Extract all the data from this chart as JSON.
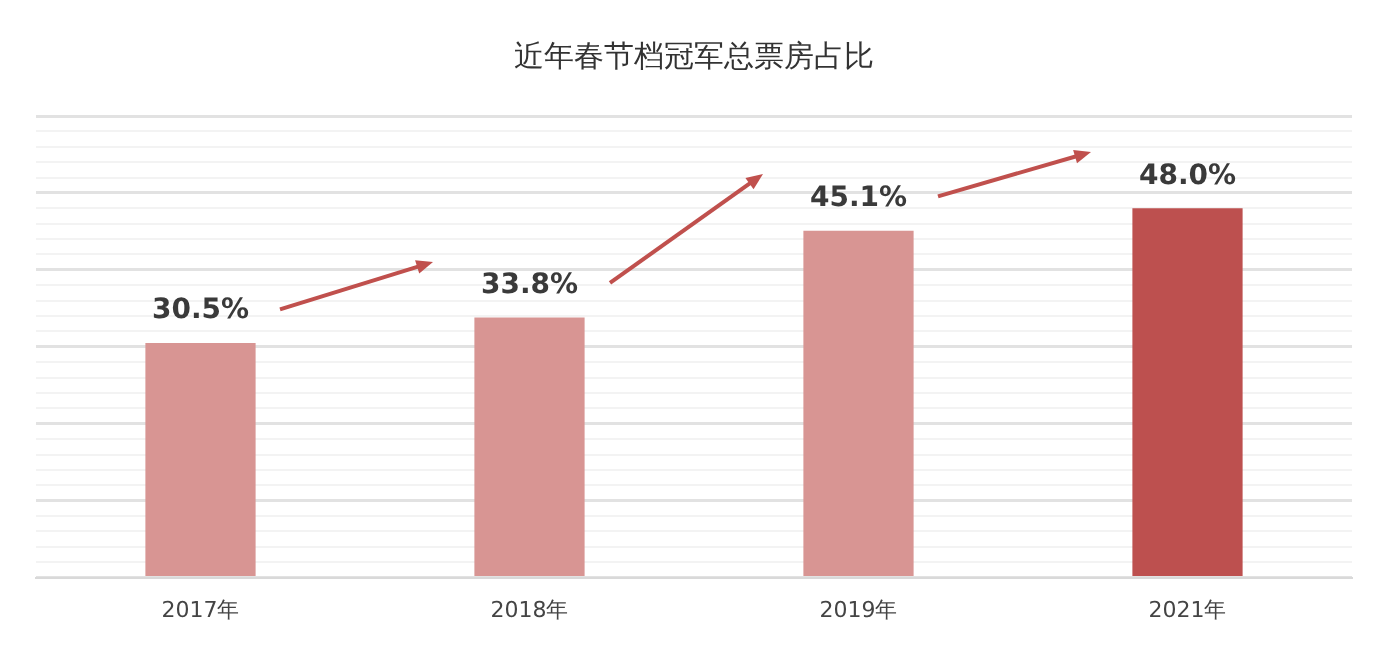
{
  "chart_data": {
    "type": "bar",
    "title": "近年春节档冠军总票房占比",
    "categories": [
      "2017年",
      "2018年",
      "2019年",
      "2021年"
    ],
    "values": [
      30.5,
      33.8,
      45.1,
      48.0
    ],
    "value_labels": [
      "30.5%",
      "33.8%",
      "45.1%",
      "48.0%"
    ],
    "colors": [
      "#d89593",
      "#d89593",
      "#d89593",
      "#bd504f"
    ],
    "ylim": [
      0,
      60
    ],
    "yticks": [
      {
        "value": 0,
        "label": null
      },
      {
        "value": 2,
        "label": null
      },
      {
        "value": 4,
        "label": null
      },
      {
        "value": 6,
        "label": null
      },
      {
        "value": 8,
        "label": null
      },
      {
        "value": 10,
        "label": null
      },
      {
        "value": 12,
        "label": null
      },
      {
        "value": 14,
        "label": null
      },
      {
        "value": 16,
        "label": null
      },
      {
        "value": 18,
        "label": null
      },
      {
        "value": 20,
        "label": null
      },
      {
        "value": 22,
        "label": null
      },
      {
        "value": 24,
        "label": null
      },
      {
        "value": 26,
        "label": null
      },
      {
        "value": 28,
        "label": null
      },
      {
        "value": 30,
        "label": null
      },
      {
        "value": 32,
        "label": null
      },
      {
        "value": 34,
        "label": null
      },
      {
        "value": 36,
        "label": null
      },
      {
        "value": 38,
        "label": null
      },
      {
        "value": 40,
        "label": null
      },
      {
        "value": 42,
        "label": null
      },
      {
        "value": 44,
        "label": null
      },
      {
        "value": 46,
        "label": null
      },
      {
        "value": 48,
        "label": null
      },
      {
        "value": 50,
        "label": null
      },
      {
        "value": 52,
        "label": null
      },
      {
        "value": 54,
        "label": null
      },
      {
        "value": 56,
        "label": null
      },
      {
        "value": 58,
        "label": null
      },
      {
        "value": 60,
        "label": null
      }
    ],
    "grid": "y",
    "tick_labels": "x",
    "legend": false
  }
}
